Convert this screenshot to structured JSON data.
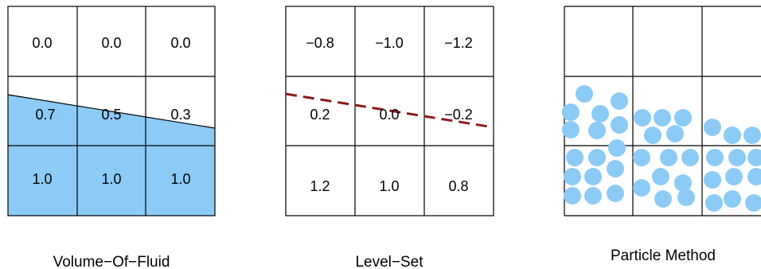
{
  "panels": {
    "vof": {
      "caption": "Volume−Of−Fluid",
      "cells": [
        [
          "0.0",
          "0.0",
          "0.0"
        ],
        [
          "0.7",
          "0.5",
          "0.3"
        ],
        [
          "1.0",
          "1.0",
          "1.0"
        ]
      ],
      "volume_fractions": [
        [
          0.0,
          0.0,
          0.0
        ],
        [
          0.7,
          0.5,
          0.3
        ],
        [
          1.0,
          1.0,
          1.0
        ]
      ],
      "fluid_color": "#8ccbf6"
    },
    "level_set": {
      "caption": "Level−Set",
      "cells": [
        [
          "−0.8",
          "−1.0",
          "−1.2"
        ],
        [
          "0.2",
          "0.0",
          "−0.2"
        ],
        [
          "1.2",
          "1.0",
          "0.8"
        ]
      ],
      "interface_color": "#8b1a1a"
    },
    "particle": {
      "caption": "Particle Method",
      "particle_color": "#8ccbf6"
    }
  }
}
